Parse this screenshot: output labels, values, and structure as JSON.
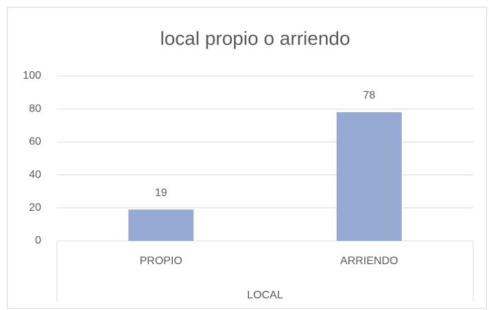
{
  "chart_data": {
    "type": "bar",
    "title": "local propio o arriendo",
    "categories": [
      "PROPIO",
      "ARRIENDO"
    ],
    "values": [
      19,
      78
    ],
    "color": "#94aad3",
    "x_label": "LOCAL",
    "ylim": [
      0,
      100
    ],
    "yticks": [
      0,
      20,
      40,
      60,
      80,
      100
    ],
    "grid": true,
    "data_labels": true
  }
}
